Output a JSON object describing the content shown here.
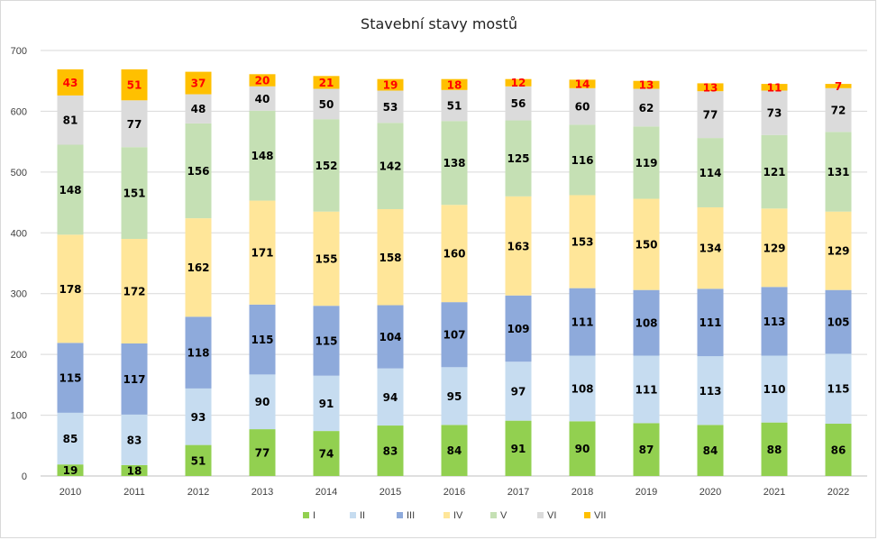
{
  "chart_data": {
    "type": "bar",
    "stacked": true,
    "title": "Stavební stavy mostů",
    "xlabel": "",
    "ylabel": "",
    "ylim": [
      0,
      700
    ],
    "yticks": [
      0,
      100,
      200,
      300,
      400,
      500,
      600,
      700
    ],
    "grid": true,
    "legend": "bottom",
    "categories": [
      "2010",
      "2011",
      "2012",
      "2013",
      "2014",
      "2015",
      "2016",
      "2017",
      "2018",
      "2019",
      "2020",
      "2021",
      "2022"
    ],
    "series": [
      {
        "name": "I",
        "color": "#92d050",
        "label_color": "#000000",
        "values": [
          19,
          18,
          51,
          77,
          74,
          83,
          84,
          91,
          90,
          87,
          84,
          88,
          86
        ]
      },
      {
        "name": "II",
        "color": "#c6dcf0",
        "label_color": "#000000",
        "values": [
          85,
          83,
          93,
          90,
          91,
          94,
          95,
          97,
          108,
          111,
          113,
          110,
          115
        ]
      },
      {
        "name": "III",
        "color": "#8eaadb",
        "label_color": "#000000",
        "values": [
          115,
          117,
          118,
          115,
          115,
          104,
          107,
          109,
          111,
          108,
          111,
          113,
          105
        ]
      },
      {
        "name": "IV",
        "color": "#ffe699",
        "label_color": "#000000",
        "values": [
          178,
          172,
          162,
          171,
          155,
          158,
          160,
          163,
          153,
          150,
          134,
          129,
          129
        ]
      },
      {
        "name": "V",
        "color": "#c5e0b4",
        "label_color": "#000000",
        "values": [
          148,
          151,
          156,
          148,
          152,
          142,
          138,
          125,
          116,
          119,
          114,
          121,
          131
        ]
      },
      {
        "name": "VI",
        "color": "#dbdbdb",
        "label_color": "#000000",
        "values": [
          81,
          77,
          48,
          40,
          50,
          53,
          51,
          56,
          60,
          62,
          77,
          73,
          72
        ]
      },
      {
        "name": "VII",
        "color": "#ffc000",
        "label_color": "#ff0000",
        "values": [
          43,
          51,
          37,
          20,
          21,
          19,
          18,
          12,
          14,
          13,
          13,
          11,
          7
        ]
      }
    ]
  }
}
